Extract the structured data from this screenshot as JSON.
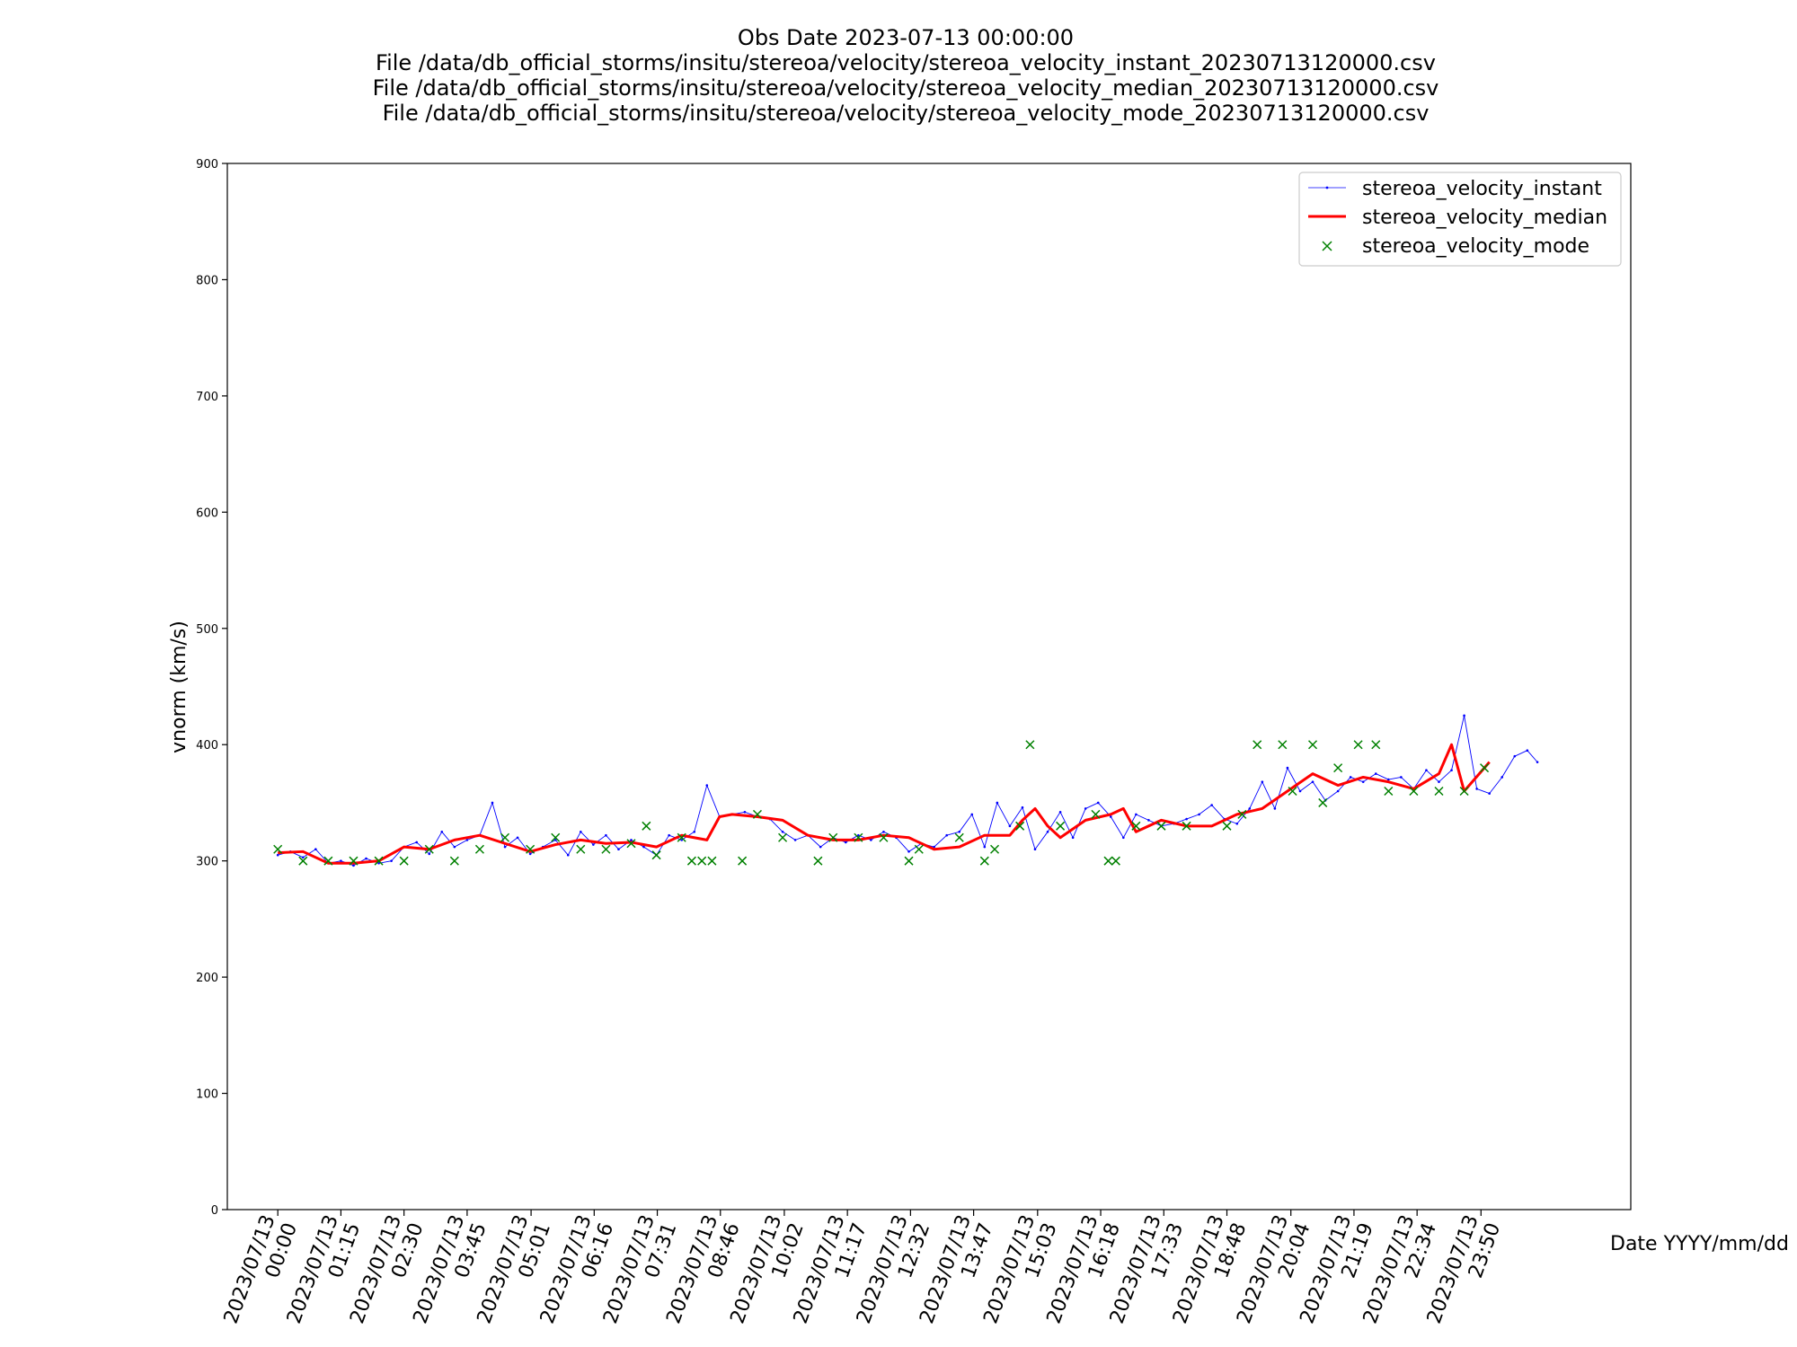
{
  "chart_data": {
    "type": "line",
    "title_lines": [
      "Obs Date 2023-07-13 00:00:00",
      "File /data/db_official_storms/insitu/stereoa/velocity/stereoa_velocity_instant_20230713120000.csv",
      "File /data/db_official_storms/insitu/stereoa/velocity/stereoa_velocity_median_20230713120000.csv",
      "File /data/db_official_storms/insitu/stereoa/velocity/stereoa_velocity_mode_20230713120000.csv"
    ],
    "xlabel": "Date YYYY/mm/dd",
    "ylabel": "vnorm (km/s)",
    "x_unit": "hours since 2023/07/13 00:00",
    "xlim": [
      -1.0,
      26.8
    ],
    "ylim": [
      0,
      900
    ],
    "yticks": [
      0,
      100,
      200,
      300,
      400,
      500,
      600,
      700,
      800,
      900
    ],
    "xticks": [
      {
        "x": 0.0,
        "date": "2023/07/13",
        "time": "00:00"
      },
      {
        "x": 1.25,
        "date": "2023/07/13",
        "time": "01:15"
      },
      {
        "x": 2.5,
        "date": "2023/07/13",
        "time": "02:30"
      },
      {
        "x": 3.75,
        "date": "2023/07/13",
        "time": "03:45"
      },
      {
        "x": 5.017,
        "date": "2023/07/13",
        "time": "05:01"
      },
      {
        "x": 6.267,
        "date": "2023/07/13",
        "time": "06:16"
      },
      {
        "x": 7.517,
        "date": "2023/07/13",
        "time": "07:31"
      },
      {
        "x": 8.767,
        "date": "2023/07/13",
        "time": "08:46"
      },
      {
        "x": 10.033,
        "date": "2023/07/13",
        "time": "10:02"
      },
      {
        "x": 11.283,
        "date": "2023/07/13",
        "time": "11:17"
      },
      {
        "x": 12.533,
        "date": "2023/07/13",
        "time": "12:32"
      },
      {
        "x": 13.783,
        "date": "2023/07/13",
        "time": "13:47"
      },
      {
        "x": 15.05,
        "date": "2023/07/13",
        "time": "15:03"
      },
      {
        "x": 16.3,
        "date": "2023/07/13",
        "time": "16:18"
      },
      {
        "x": 17.55,
        "date": "2023/07/13",
        "time": "17:33"
      },
      {
        "x": 18.8,
        "date": "2023/07/13",
        "time": "18:48"
      },
      {
        "x": 20.067,
        "date": "2023/07/13",
        "time": "20:04"
      },
      {
        "x": 21.317,
        "date": "2023/07/13",
        "time": "21:19"
      },
      {
        "x": 22.567,
        "date": "2023/07/13",
        "time": "22:34"
      },
      {
        "x": 23.833,
        "date": "2023/07/13",
        "time": "23:50"
      }
    ],
    "grid": false,
    "legend_position": "top-right",
    "series": [
      {
        "name": "stereoa_velocity_instant",
        "style": "line-with-small-markers",
        "color": "#0000ff",
        "x": [
          0.0,
          0.25,
          0.5,
          0.75,
          1.0,
          1.25,
          1.5,
          1.75,
          2.0,
          2.25,
          2.5,
          2.75,
          3.0,
          3.25,
          3.5,
          3.75,
          4.0,
          4.25,
          4.5,
          4.75,
          5.0,
          5.25,
          5.5,
          5.75,
          6.0,
          6.25,
          6.5,
          6.75,
          7.0,
          7.25,
          7.5,
          7.75,
          8.0,
          8.25,
          8.5,
          8.75,
          9.0,
          9.25,
          9.5,
          9.75,
          10.0,
          10.25,
          10.5,
          10.75,
          11.0,
          11.25,
          11.5,
          11.75,
          12.0,
          12.25,
          12.5,
          12.75,
          13.0,
          13.25,
          13.5,
          13.75,
          14.0,
          14.25,
          14.5,
          14.75,
          15.0,
          15.25,
          15.5,
          15.75,
          16.0,
          16.25,
          16.5,
          16.75,
          17.0,
          17.25,
          17.5,
          17.75,
          18.0,
          18.25,
          18.5,
          18.75,
          19.0,
          19.25,
          19.5,
          19.75,
          20.0,
          20.25,
          20.5,
          20.75,
          21.0,
          21.25,
          21.5,
          21.75,
          22.0,
          22.25,
          22.5,
          22.75,
          23.0,
          23.25,
          23.5,
          23.75,
          24.0,
          24.25,
          24.5,
          24.75,
          24.95
        ],
        "y": [
          305,
          308,
          303,
          310,
          298,
          300,
          296,
          302,
          298,
          300,
          312,
          316,
          306,
          325,
          312,
          318,
          322,
          350,
          312,
          320,
          306,
          312,
          318,
          305,
          325,
          314,
          322,
          310,
          318,
          312,
          305,
          322,
          318,
          325,
          365,
          338,
          340,
          342,
          338,
          336,
          325,
          318,
          322,
          312,
          320,
          316,
          322,
          318,
          325,
          320,
          308,
          315,
          312,
          322,
          325,
          340,
          312,
          350,
          330,
          346,
          310,
          325,
          342,
          320,
          345,
          350,
          338,
          320,
          340,
          335,
          330,
          332,
          336,
          340,
          348,
          336,
          332,
          345,
          368,
          345,
          380,
          360,
          368,
          352,
          360,
          372,
          368,
          375,
          370,
          372,
          362,
          378,
          368,
          378,
          425,
          362,
          358,
          372,
          390,
          395,
          385
        ]
      },
      {
        "name": "stereoa_velocity_median",
        "style": "line",
        "color": "#ff0000",
        "x": [
          0.0,
          0.5,
          1.0,
          1.5,
          2.0,
          2.5,
          3.0,
          3.5,
          4.0,
          4.5,
          5.0,
          5.5,
          6.0,
          6.5,
          7.0,
          7.5,
          8.0,
          8.5,
          8.75,
          9.0,
          9.5,
          10.0,
          10.5,
          11.0,
          11.5,
          12.0,
          12.5,
          13.0,
          13.5,
          14.0,
          14.5,
          14.75,
          15.0,
          15.25,
          15.5,
          16.0,
          16.5,
          16.75,
          17.0,
          17.5,
          18.0,
          18.5,
          19.0,
          19.5,
          20.0,
          20.5,
          21.0,
          21.5,
          22.0,
          22.5,
          23.0,
          23.25,
          23.5,
          24.0
        ],
        "y": [
          307,
          308,
          298,
          298,
          300,
          312,
          310,
          318,
          322,
          315,
          308,
          314,
          318,
          315,
          316,
          312,
          322,
          318,
          338,
          340,
          338,
          335,
          322,
          318,
          318,
          322,
          320,
          310,
          312,
          322,
          322,
          335,
          345,
          330,
          320,
          335,
          340,
          345,
          325,
          335,
          330,
          330,
          340,
          345,
          360,
          375,
          365,
          372,
          368,
          362,
          375,
          400,
          360,
          385
        ]
      },
      {
        "name": "stereoa_velocity_mode",
        "style": "markers-x",
        "color": "#008000",
        "x": [
          0.0,
          0.5,
          1.0,
          1.5,
          2.0,
          2.5,
          3.0,
          3.5,
          4.0,
          4.5,
          5.0,
          5.5,
          6.0,
          6.5,
          7.0,
          7.3,
          7.5,
          8.0,
          8.2,
          8.4,
          8.6,
          9.2,
          9.5,
          10.0,
          10.7,
          11.0,
          11.5,
          12.0,
          12.5,
          12.7,
          13.5,
          14.0,
          14.2,
          14.7,
          14.9,
          15.5,
          16.2,
          16.45,
          16.6,
          17.0,
          17.5,
          18.0,
          18.8,
          19.1,
          19.4,
          19.9,
          20.1,
          20.5,
          20.7,
          21.0,
          21.4,
          21.75,
          22.0,
          22.5,
          23.0,
          23.5,
          23.9
        ],
        "y": [
          310,
          300,
          300,
          300,
          300,
          300,
          310,
          300,
          310,
          320,
          310,
          320,
          310,
          310,
          315,
          330,
          305,
          320,
          300,
          300,
          300,
          300,
          340,
          320,
          300,
          320,
          320,
          320,
          300,
          310,
          320,
          300,
          310,
          330,
          400,
          330,
          340,
          300,
          300,
          330,
          330,
          330,
          330,
          340,
          400,
          400,
          360,
          400,
          350,
          380,
          400,
          400,
          360,
          360,
          360,
          360,
          380
        ]
      }
    ]
  }
}
